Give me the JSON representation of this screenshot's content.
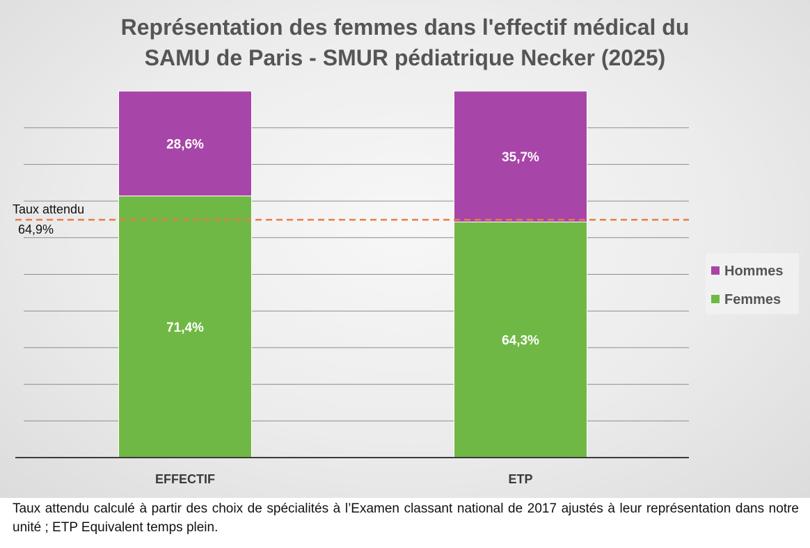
{
  "chart_data": {
    "type": "bar",
    "stacked": true,
    "title_lines": [
      "Représentation des femmes dans l'effectif médical du",
      "SAMU de Paris - SMUR pédiatrique Necker (2025)"
    ],
    "categories": [
      "EFFECTIF",
      "ETP"
    ],
    "series": [
      {
        "name": "Femmes",
        "values": [
          71.4,
          64.3
        ],
        "labels": [
          "71,4%",
          "64,3%"
        ],
        "color": "#70b845"
      },
      {
        "name": "Hommes",
        "values": [
          28.6,
          35.7
        ],
        "labels": [
          "28,6%",
          "35,7%"
        ],
        "color": "#a745a8"
      }
    ],
    "ylim": [
      0,
      100
    ],
    "grid": true,
    "legend_position": "right",
    "reference_line": {
      "value": 64.9,
      "label_lines": [
        "Taux attendu",
        "64,9%"
      ],
      "color": "#e87c42",
      "style": "dashed"
    }
  },
  "caption": "Taux attendu calculé à partir des choix de spécialités à l’Examen classant national de 2017 ajustés à leur représentation dans notre unité ; ETP Equivalent temps plein."
}
